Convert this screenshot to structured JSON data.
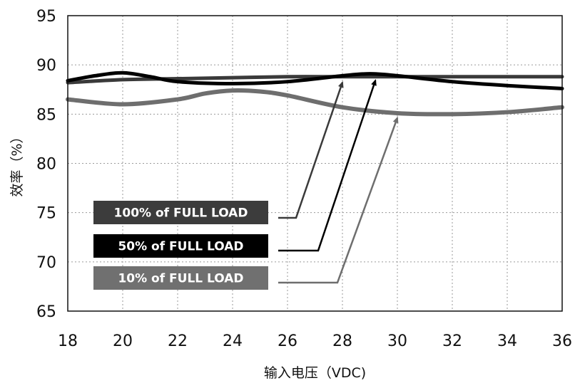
{
  "chart_data": {
    "type": "line",
    "title": "",
    "xlabel": "输入电压（VDC)",
    "ylabel": "效率（%）",
    "xlim": [
      18,
      36
    ],
    "ylim": [
      65,
      95
    ],
    "x_ticks": [
      18,
      20,
      22,
      24,
      26,
      28,
      30,
      32,
      34,
      36
    ],
    "y_ticks": [
      65,
      70,
      75,
      80,
      85,
      90,
      95
    ],
    "grid": true,
    "series": [
      {
        "name": "100% of FULL LOAD",
        "color": "#3a3a3a",
        "x": [
          18,
          20,
          22,
          24,
          26,
          28,
          30,
          32,
          34,
          36
        ],
        "y": [
          88.2,
          88.5,
          88.6,
          88.7,
          88.8,
          88.8,
          88.8,
          88.8,
          88.8,
          88.8
        ]
      },
      {
        "name": "50% of FULL LOAD",
        "color": "#000000",
        "x": [
          18,
          19,
          20,
          21,
          22,
          24,
          26,
          28,
          29,
          30,
          32,
          34,
          36
        ],
        "y": [
          88.4,
          88.9,
          89.2,
          88.8,
          88.3,
          88.1,
          88.3,
          88.9,
          89.1,
          88.9,
          88.3,
          87.9,
          87.6
        ]
      },
      {
        "name": "10% of FULL LOAD",
        "color": "#6e6e6e",
        "x": [
          18,
          20,
          22,
          23,
          24,
          25,
          26,
          28,
          30,
          32,
          34,
          36
        ],
        "y": [
          86.5,
          86.0,
          86.5,
          87.1,
          87.4,
          87.3,
          86.9,
          85.7,
          85.1,
          85.0,
          85.2,
          85.7
        ]
      }
    ],
    "legend": [
      {
        "label": "100% of FULL LOAD",
        "box_color": "#3c3c3c",
        "arrow_to": [
          28,
          88.8
        ]
      },
      {
        "label": "50% of FULL LOAD",
        "box_color": "#000000",
        "arrow_to": [
          29.2,
          89.0
        ]
      },
      {
        "label": "10% of FULL LOAD",
        "box_color": "#707070",
        "arrow_to": [
          30,
          85.2
        ]
      }
    ]
  }
}
